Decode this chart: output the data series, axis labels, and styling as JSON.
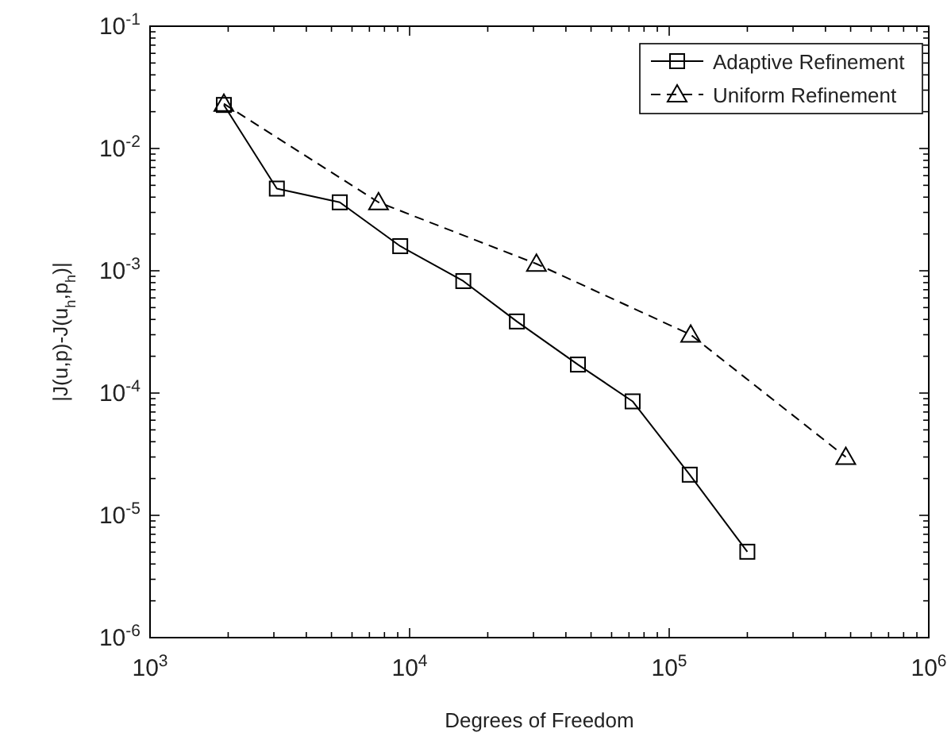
{
  "chart_data": {
    "type": "line",
    "xlabel": "Degrees of Freedom",
    "ylabel": "|J(u,p)-J(u$_{h}$,p$_{h}$)|",
    "log": "xy",
    "legend": "top right",
    "grid": false,
    "xlim": [
      1000,
      1000000
    ],
    "ylim": [
      1e-06,
      0.1
    ],
    "xticks": [
      {
        "value": 1000,
        "label": "10$^{3}$"
      },
      {
        "value": 2000,
        "label": null
      },
      {
        "value": 3000,
        "label": null
      },
      {
        "value": 4000,
        "label": null
      },
      {
        "value": 5000,
        "label": null
      },
      {
        "value": 6000,
        "label": null
      },
      {
        "value": 7000,
        "label": null
      },
      {
        "value": 8000,
        "label": null
      },
      {
        "value": 9000,
        "label": null
      },
      {
        "value": 10000,
        "label": "10$^{4}$"
      },
      {
        "value": 20000,
        "label": null
      },
      {
        "value": 30000,
        "label": null
      },
      {
        "value": 40000,
        "label": null
      },
      {
        "value": 50000,
        "label": null
      },
      {
        "value": 60000,
        "label": null
      },
      {
        "value": 70000,
        "label": null
      },
      {
        "value": 80000,
        "label": null
      },
      {
        "value": 90000,
        "label": null
      },
      {
        "value": 100000,
        "label": "10$^{5}$"
      },
      {
        "value": 200000,
        "label": null
      },
      {
        "value": 300000,
        "label": null
      },
      {
        "value": 400000,
        "label": null
      },
      {
        "value": 500000,
        "label": null
      },
      {
        "value": 600000,
        "label": null
      },
      {
        "value": 700000,
        "label": null
      },
      {
        "value": 800000,
        "label": null
      },
      {
        "value": 900000,
        "label": null
      },
      {
        "value": 1000000,
        "label": "10$^{6}$"
      }
    ],
    "yticks": [
      {
        "value": 1e-06,
        "label": "10$^{-6}$"
      },
      {
        "value": 2e-06,
        "label": null
      },
      {
        "value": 3e-06,
        "label": null
      },
      {
        "value": 4e-06,
        "label": null
      },
      {
        "value": 5e-06,
        "label": null
      },
      {
        "value": 6e-06,
        "label": null
      },
      {
        "value": 7e-06,
        "label": null
      },
      {
        "value": 8e-06,
        "label": null
      },
      {
        "value": 9e-06,
        "label": null
      },
      {
        "value": 1e-05,
        "label": "10$^{-5}$"
      },
      {
        "value": 2e-05,
        "label": null
      },
      {
        "value": 3e-05,
        "label": null
      },
      {
        "value": 4e-05,
        "label": null
      },
      {
        "value": 5e-05,
        "label": null
      },
      {
        "value": 6e-05,
        "label": null
      },
      {
        "value": 7e-05,
        "label": null
      },
      {
        "value": 8e-05,
        "label": null
      },
      {
        "value": 9e-05,
        "label": null
      },
      {
        "value": 0.0001,
        "label": "10$^{-4}$"
      },
      {
        "value": 0.0002,
        "label": null
      },
      {
        "value": 0.0003,
        "label": null
      },
      {
        "value": 0.0004,
        "label": null
      },
      {
        "value": 0.0005,
        "label": null
      },
      {
        "value": 0.0006,
        "label": null
      },
      {
        "value": 0.0007,
        "label": null
      },
      {
        "value": 0.0008,
        "label": null
      },
      {
        "value": 0.0009,
        "label": null
      },
      {
        "value": 0.001,
        "label": "10$^{-3}$"
      },
      {
        "value": 0.002,
        "label": null
      },
      {
        "value": 0.003,
        "label": null
      },
      {
        "value": 0.004,
        "label": null
      },
      {
        "value": 0.005,
        "label": null
      },
      {
        "value": 0.006,
        "label": null
      },
      {
        "value": 0.007,
        "label": null
      },
      {
        "value": 0.008,
        "label": null
      },
      {
        "value": 0.009,
        "label": null
      },
      {
        "value": 0.01,
        "label": "10$^{-2}$"
      },
      {
        "value": 0.02,
        "label": null
      },
      {
        "value": 0.03,
        "label": null
      },
      {
        "value": 0.04,
        "label": null
      },
      {
        "value": 0.05,
        "label": null
      },
      {
        "value": 0.06,
        "label": null
      },
      {
        "value": 0.07,
        "label": null
      },
      {
        "value": 0.08,
        "label": null
      },
      {
        "value": 0.09,
        "label": null
      },
      {
        "value": 0.1,
        "label": "10$^{-1}$"
      }
    ],
    "series": [
      {
        "name": "Adaptive Refinement",
        "color": "#000000",
        "marker": "square",
        "line_style": "solid",
        "x": [
          1925,
          3080,
          5380,
          9200,
          16100,
          25900,
          44500,
          72300,
          120000,
          200000
        ],
        "values": [
          0.0227,
          0.0047,
          0.00363,
          0.00159,
          0.000824,
          0.000385,
          0.000171,
          8.55e-05,
          2.15e-05,
          5.04e-06
        ]
      },
      {
        "name": "Uniform Refinement",
        "color": "#000000",
        "marker": "triangle",
        "line_style": "dashed",
        "x": [
          1925,
          7590,
          30800,
          121000,
          479000
        ],
        "values": [
          0.0232,
          0.00363,
          0.00114,
          0.0003,
          3e-05
        ]
      }
    ]
  }
}
